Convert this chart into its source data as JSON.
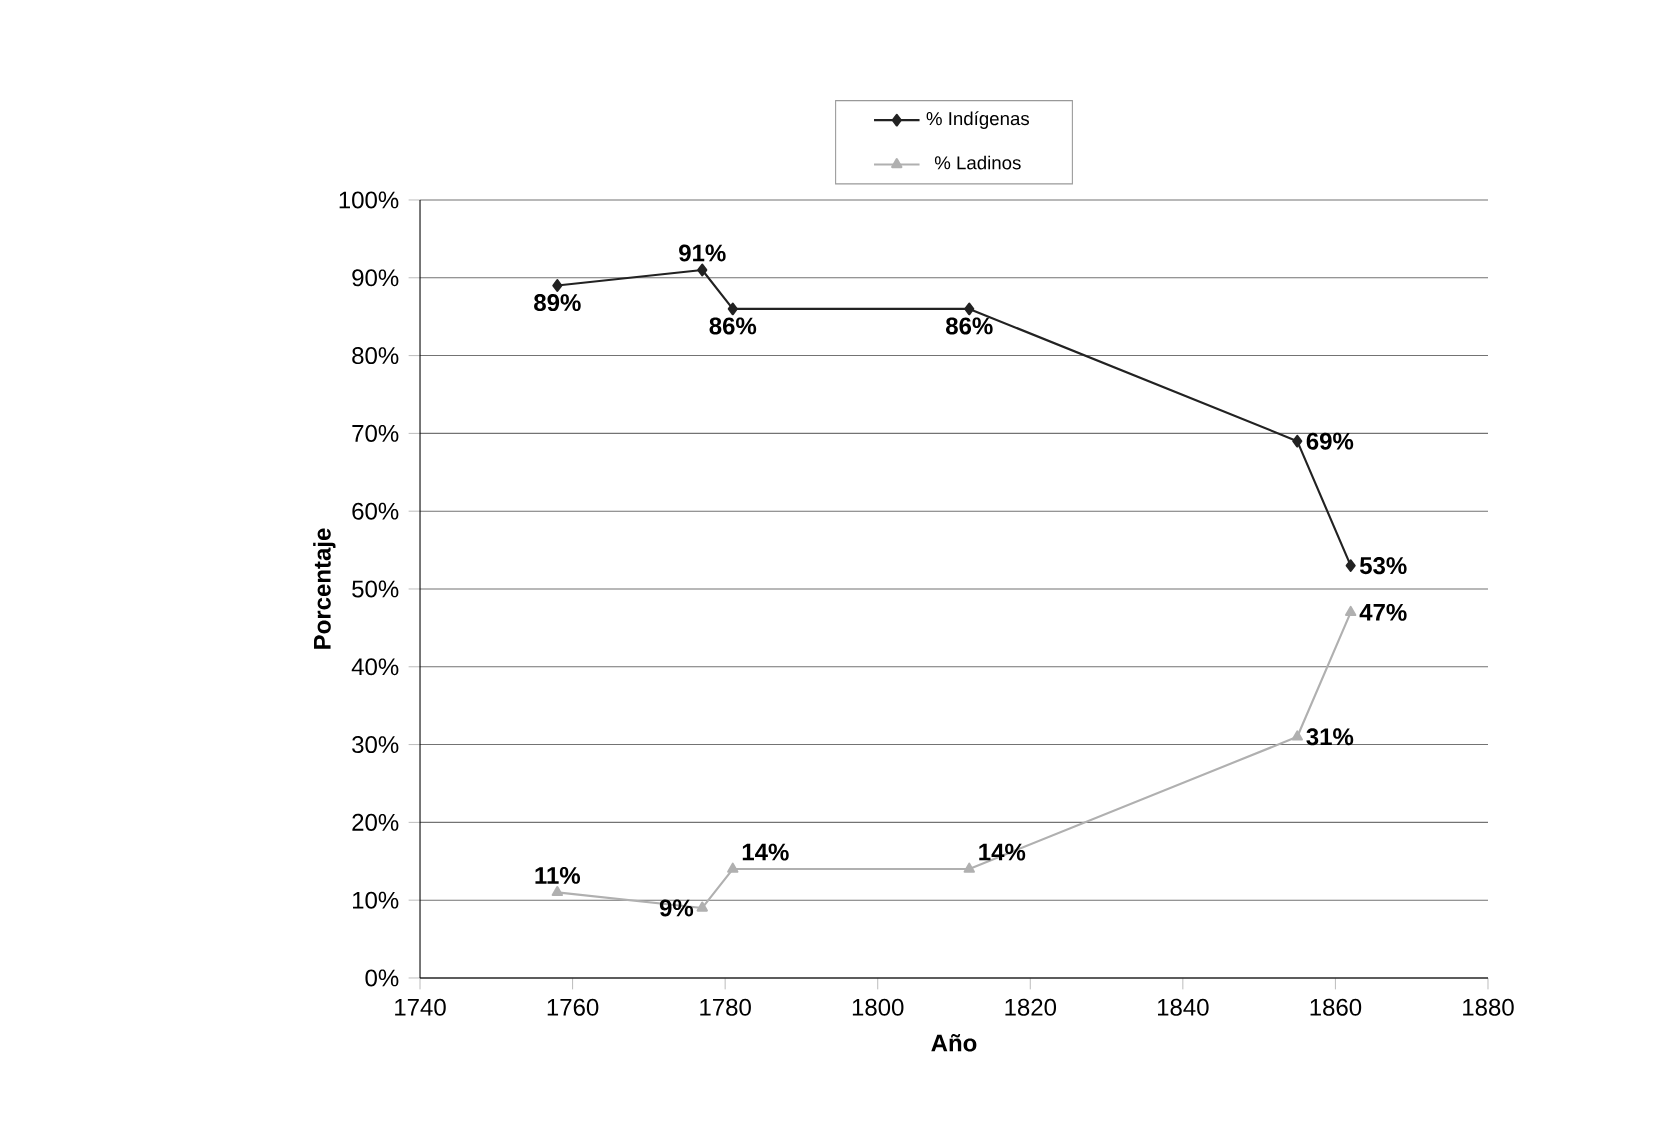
{
  "chart_data": {
    "type": "line",
    "xlabel": "Año",
    "ylabel": "Porcentaje",
    "xlim": [
      1740,
      1880
    ],
    "xticks": [
      1740,
      1760,
      1780,
      1800,
      1820,
      1840,
      1860,
      1880
    ],
    "ylim": [
      0,
      100
    ],
    "yticks": [
      {
        "value": 0,
        "label": "0%"
      },
      {
        "value": 10,
        "label": "10%"
      },
      {
        "value": 20,
        "label": "20%"
      },
      {
        "value": 30,
        "label": "30%"
      },
      {
        "value": 40,
        "label": "40%"
      },
      {
        "value": 50,
        "label": "50%"
      },
      {
        "value": 60,
        "label": "60%"
      },
      {
        "value": 70,
        "label": "70%"
      },
      {
        "value": 80,
        "label": "80%"
      },
      {
        "value": 90,
        "label": "90%"
      },
      {
        "value": 100,
        "label": "100%"
      }
    ],
    "grid": "y",
    "legend": "top",
    "x": [
      1758,
      1777,
      1781,
      1812,
      1855,
      1862
    ],
    "series": [
      {
        "name": "% Indígenas",
        "color": "#222222",
        "marker": "diamond",
        "values": [
          89,
          91,
          86,
          86,
          69,
          53
        ],
        "value_labels": [
          "89%",
          "91%",
          "86%",
          "86%",
          "69%",
          "53%"
        ]
      },
      {
        "name": "% Ladinos",
        "color": "#b0b0b0",
        "marker": "triangle",
        "values": [
          11,
          9,
          14,
          14,
          31,
          47
        ],
        "value_labels": [
          "11%",
          "9%",
          "14%",
          "14%",
          "31%",
          "47%"
        ]
      }
    ]
  }
}
